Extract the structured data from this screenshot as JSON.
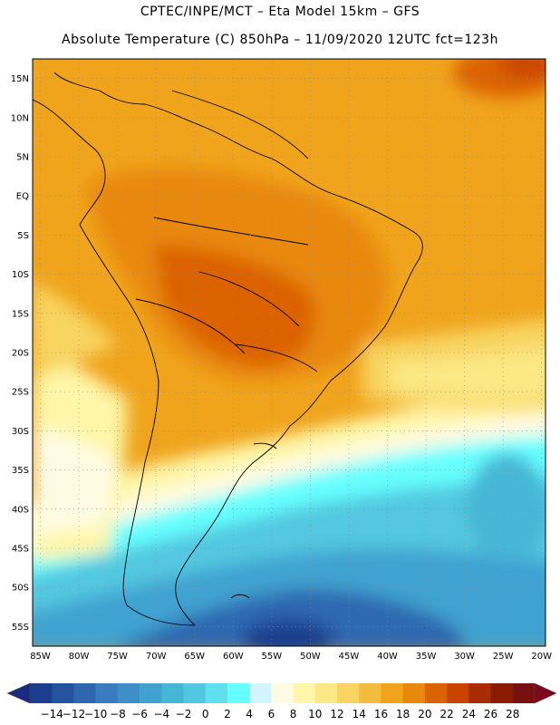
{
  "header": {
    "title_line1": "CPTEC/INPE/MCT –  Eta Model 15km – GFS",
    "title_line2": "Absolute Temperature (C) 850hPa – 11/09/2020 12UTC fct=123h"
  },
  "map": {
    "lat_labels": [
      "15N",
      "10N",
      "5N",
      "EQ",
      "5S",
      "10S",
      "15S",
      "20S",
      "25S",
      "30S",
      "35S",
      "40S",
      "45S",
      "50S",
      "55S"
    ],
    "lon_labels": [
      "85W",
      "80W",
      "75W",
      "70W",
      "65W",
      "60W",
      "55W",
      "50W",
      "45W",
      "40W",
      "35W",
      "30W",
      "25W",
      "20W"
    ],
    "lat_range": [
      17.5,
      -57.5
    ],
    "lon_range": [
      -86,
      -19.5
    ],
    "grid": "dotted"
  },
  "colorbar": {
    "labels": [
      "-14",
      "-12",
      "-10",
      "-8",
      "-6",
      "-4",
      "-2",
      "0",
      "2",
      "4",
      "6",
      "8",
      "10",
      "12",
      "14",
      "16",
      "18",
      "20",
      "22",
      "24",
      "26",
      "28"
    ],
    "colors": [
      "#1b3f8e",
      "#2553a0",
      "#2e67b0",
      "#3b7bbf",
      "#3e8fc8",
      "#41a2d0",
      "#46b6d6",
      "#52c8e0",
      "#5ee0ef",
      "#66ffff",
      "#d2f4ff",
      "#fffbe3",
      "#fff6a8",
      "#fce884",
      "#f8d460",
      "#f4bc3c",
      "#f0a41c",
      "#e8880c",
      "#dc6200",
      "#c84400",
      "#a82c00",
      "#8a1a00",
      "#781010"
    ],
    "left_arrow_color": "#1a2a80",
    "right_arrow_color": "#7a0a1a"
  }
}
